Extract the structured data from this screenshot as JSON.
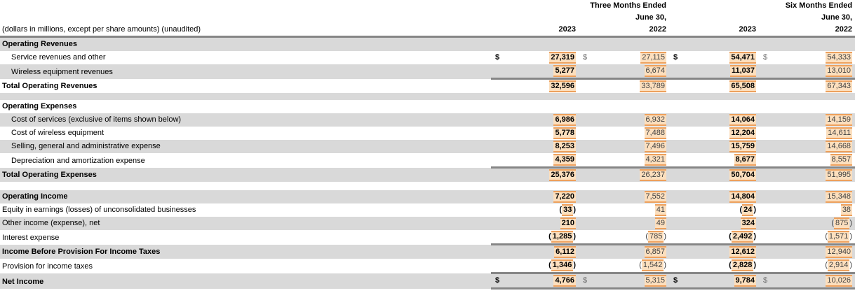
{
  "header": {
    "note": "(dollars in millions, except per share amounts) (unaudited)",
    "groups": [
      {
        "line1": "Three Months Ended",
        "line2": "June 30,",
        "years": [
          "2023",
          "2022"
        ]
      },
      {
        "line1": "Six Months Ended",
        "line2": "June 30,",
        "years": [
          "2023",
          "2022"
        ]
      }
    ]
  },
  "colors": {
    "row_shade": "#d9d9d9",
    "highlight_fill": "#fcdfbe",
    "highlight_border": "#eda05c",
    "rule": "#868686",
    "year2023_text": "#000000",
    "year2022_text": "#404040"
  },
  "table": {
    "rows": [
      {
        "type": "section",
        "label": "Operating Revenues",
        "shaded": true,
        "values": null
      },
      {
        "type": "detail",
        "label": "Service revenues and other",
        "shaded": false,
        "dollar": true,
        "values": [
          "27,319",
          "27,115",
          "54,471",
          "54,333"
        ]
      },
      {
        "type": "detail",
        "label": "Wireless equipment revenues",
        "shaded": true,
        "border_below": true,
        "values": [
          "5,277",
          "6,674",
          "11,037",
          "13,010"
        ]
      },
      {
        "type": "total",
        "label": "Total Operating Revenues",
        "shaded": false,
        "values": [
          "32,596",
          "33,789",
          "65,508",
          "67,343"
        ]
      },
      {
        "type": "spacer",
        "shaded": true
      },
      {
        "type": "section",
        "label": "Operating Expenses",
        "shaded": false,
        "values": null
      },
      {
        "type": "detail",
        "label": "Cost of services (exclusive of items shown below)",
        "shaded": true,
        "values": [
          "6,986",
          "6,932",
          "14,064",
          "14,159"
        ]
      },
      {
        "type": "detail",
        "label": "Cost of wireless equipment",
        "shaded": false,
        "values": [
          "5,778",
          "7,488",
          "12,204",
          "14,611"
        ]
      },
      {
        "type": "detail",
        "label": "Selling, general and administrative expense",
        "shaded": true,
        "values": [
          "8,253",
          "7,496",
          "15,759",
          "14,668"
        ]
      },
      {
        "type": "detail",
        "label": "Depreciation and amortization expense",
        "shaded": false,
        "border_below": true,
        "values": [
          "4,359",
          "4,321",
          "8,677",
          "8,557"
        ]
      },
      {
        "type": "total",
        "label": "Total Operating Expenses",
        "shaded": true,
        "values": [
          "25,376",
          "26,237",
          "50,704",
          "51,995"
        ]
      },
      {
        "type": "spacer",
        "shaded": false
      },
      {
        "type": "total",
        "label": "Operating Income",
        "shaded": true,
        "values": [
          "7,220",
          "7,552",
          "14,804",
          "15,348"
        ]
      },
      {
        "type": "item",
        "label": "Equity in earnings (losses) of unconsolidated businesses",
        "shaded": false,
        "values": [
          "(33)",
          "41",
          "(24)",
          "38"
        ]
      },
      {
        "type": "item",
        "label": "Other income (expense), net",
        "shaded": true,
        "values": [
          "210",
          "49",
          "324",
          "(875)"
        ]
      },
      {
        "type": "item",
        "label": "Interest expense",
        "shaded": false,
        "border_below": true,
        "values": [
          "(1,285)",
          "(785)",
          "(2,492)",
          "(1,571)"
        ]
      },
      {
        "type": "total",
        "label": "Income Before Provision For Income Taxes",
        "shaded": true,
        "values": [
          "6,112",
          "6,857",
          "12,612",
          "12,940"
        ]
      },
      {
        "type": "item",
        "label": "Provision for income taxes",
        "shaded": false,
        "border_below": true,
        "values": [
          "(1,346)",
          "(1,542)",
          "(2,828)",
          "(2,914)"
        ]
      },
      {
        "type": "total",
        "label": "Net Income",
        "shaded": true,
        "dollar": true,
        "border_below": true,
        "values": [
          "4,766",
          "5,315",
          "9,784",
          "10,026"
        ]
      }
    ]
  }
}
